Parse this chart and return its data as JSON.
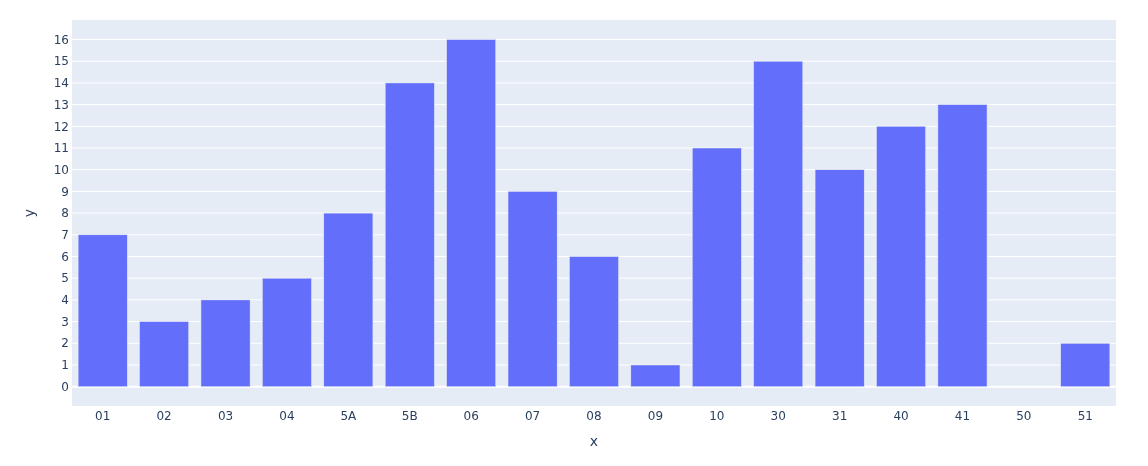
{
  "chart_data": {
    "type": "bar",
    "categories": [
      "01",
      "02",
      "03",
      "04",
      "5A",
      "5B",
      "06",
      "07",
      "08",
      "09",
      "10",
      "30",
      "31",
      "40",
      "41",
      "50",
      "51"
    ],
    "values": [
      7,
      3,
      4,
      5,
      8,
      14,
      16,
      9,
      6,
      1,
      11,
      15,
      10,
      12,
      13,
      0,
      2
    ],
    "color": "#636efa",
    "xlabel": "x",
    "ylabel": "y",
    "ylim": [
      -0.89,
      16.9
    ],
    "yticks": [
      0,
      1,
      2,
      3,
      4,
      5,
      6,
      7,
      8,
      9,
      10,
      11,
      12,
      13,
      14,
      15,
      16
    ],
    "grid": "y"
  }
}
